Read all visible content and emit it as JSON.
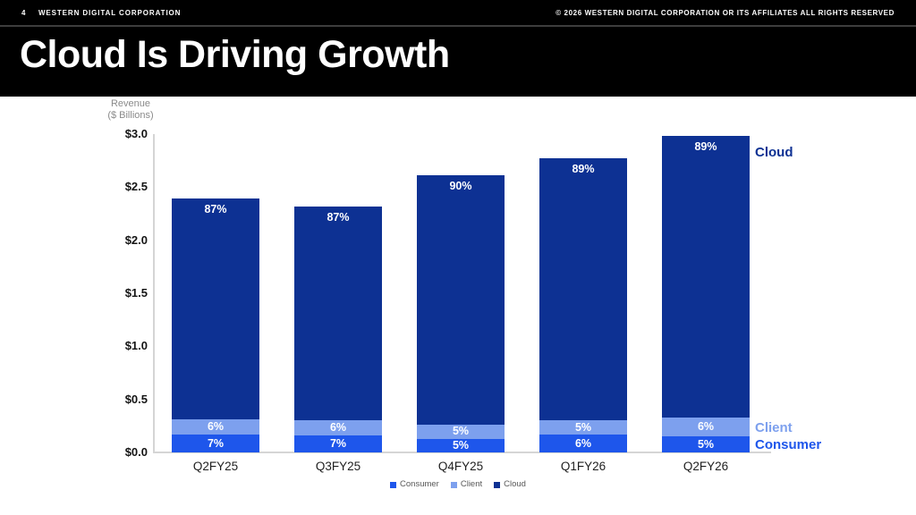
{
  "header": {
    "page_number": "4",
    "company": "WESTERN DIGITAL CORPORATION",
    "copyright": "© 2026 WESTERN DIGITAL CORPORATION OR ITS AFFILIATES  ALL RIGHTS RESERVED"
  },
  "title": "Cloud Is Driving Growth",
  "chart_data": {
    "type": "bar",
    "stacked": true,
    "title": "Cloud Is Driving Growth",
    "ylabel_line1": "Revenue",
    "ylabel_line2": "($ Billions)",
    "categories": [
      "Q2FY25",
      "Q3FY25",
      "Q4FY25",
      "Q1FY26",
      "Q2FY26"
    ],
    "totals_billions": [
      2.39,
      2.32,
      2.61,
      2.77,
      2.98
    ],
    "series": [
      {
        "name": "Consumer",
        "color": "#1e56eb",
        "pct": [
          7,
          7,
          5,
          6,
          5
        ]
      },
      {
        "name": "Client",
        "color": "#7da0ee",
        "pct": [
          6,
          6,
          5,
          5,
          6
        ]
      },
      {
        "name": "Cloud",
        "color": "#0d3193",
        "pct": [
          87,
          87,
          90,
          89,
          89
        ]
      }
    ],
    "yticks": {
      "values": [
        0,
        0.5,
        1.0,
        1.5,
        2.0,
        2.5,
        3.0
      ],
      "labels": [
        "$0.0",
        "$0.5",
        "$1.0",
        "$1.5",
        "$2.0",
        "$2.5",
        "$3.0"
      ]
    },
    "ylim": [
      0,
      3.0
    ],
    "grid": false,
    "legend_position": "bottom",
    "right_labels": [
      "Cloud",
      "Client",
      "Consumer"
    ],
    "value_label_suffix": "%"
  }
}
